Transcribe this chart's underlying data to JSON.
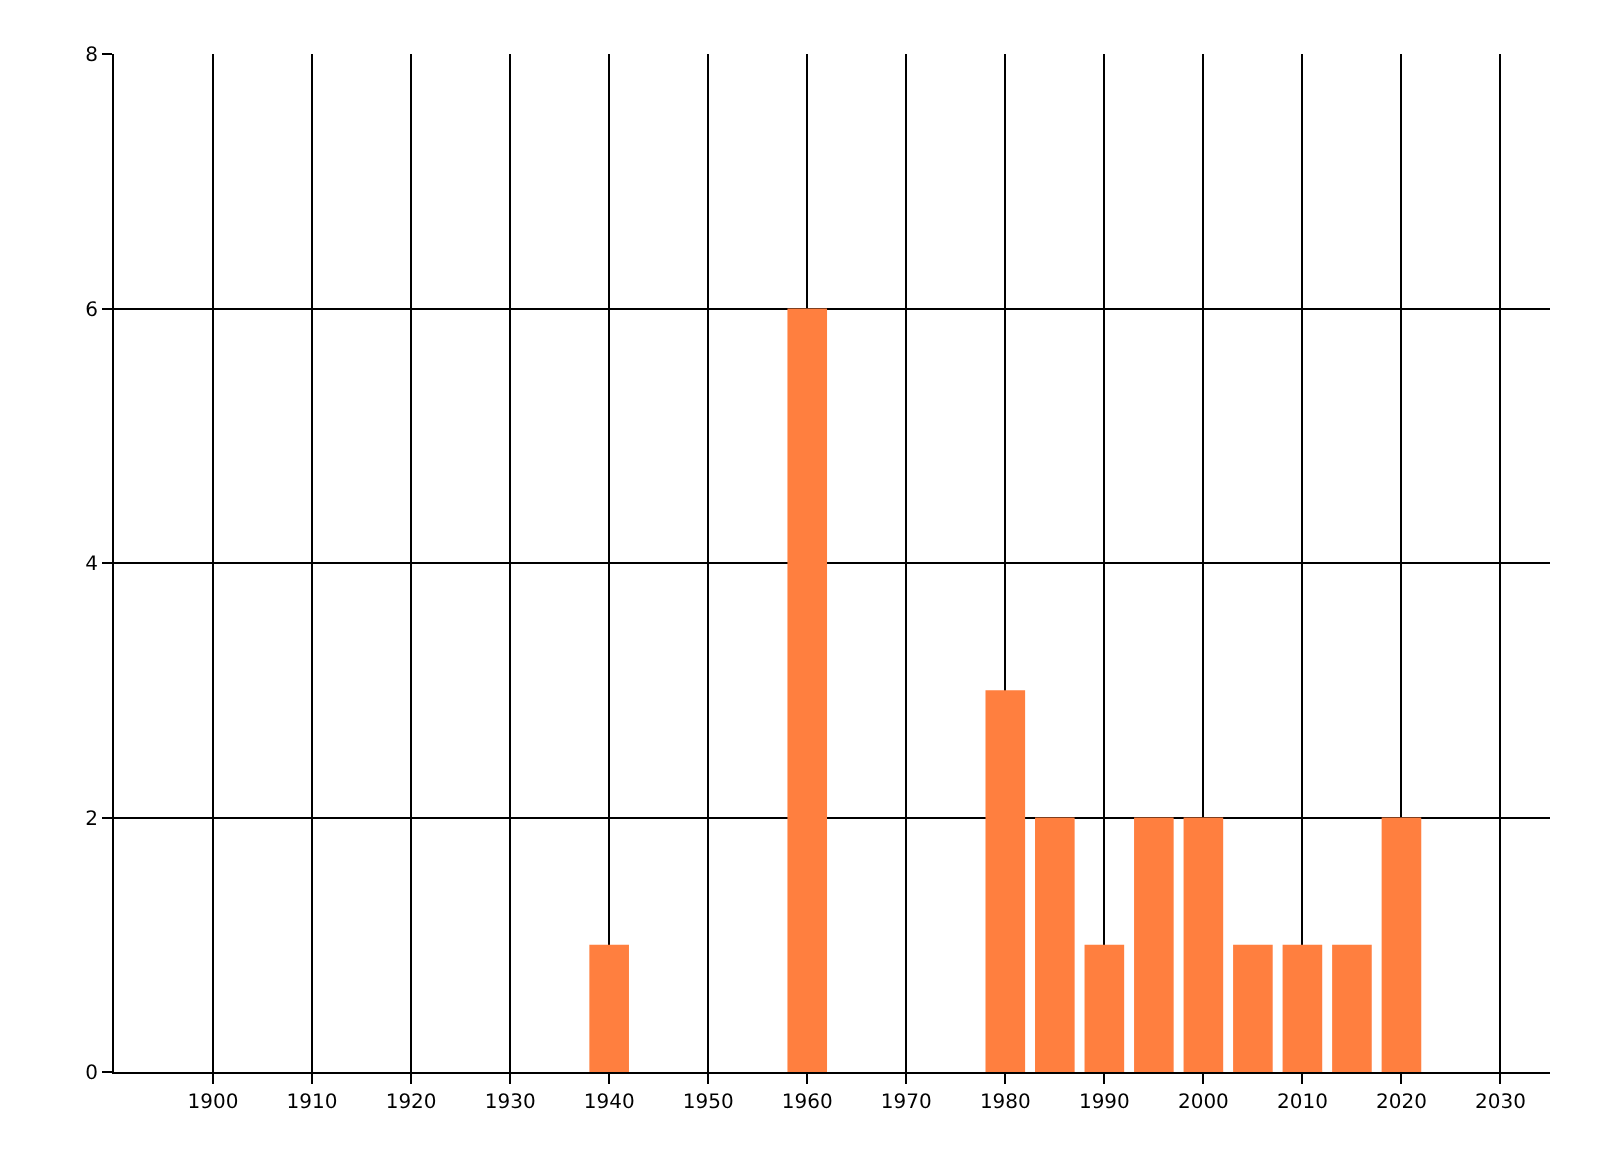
{
  "chart_data": {
    "type": "bar",
    "x": [
      1940,
      1960,
      1980,
      1985,
      1990,
      1995,
      2000,
      2005,
      2010,
      2015,
      2020
    ],
    "values": [
      1,
      6,
      3,
      2,
      1,
      2,
      2,
      1,
      1,
      1,
      2
    ],
    "color": "#ff7f3f",
    "xlim": [
      1890,
      2035
    ],
    "xticks": [
      1900,
      1910,
      1920,
      1930,
      1940,
      1950,
      1960,
      1970,
      1980,
      1990,
      2000,
      2010,
      2020,
      2030
    ],
    "ylim": [
      0,
      8
    ],
    "yticks": [
      0,
      2,
      4,
      6,
      8
    ],
    "grid": true,
    "legend": false
  }
}
